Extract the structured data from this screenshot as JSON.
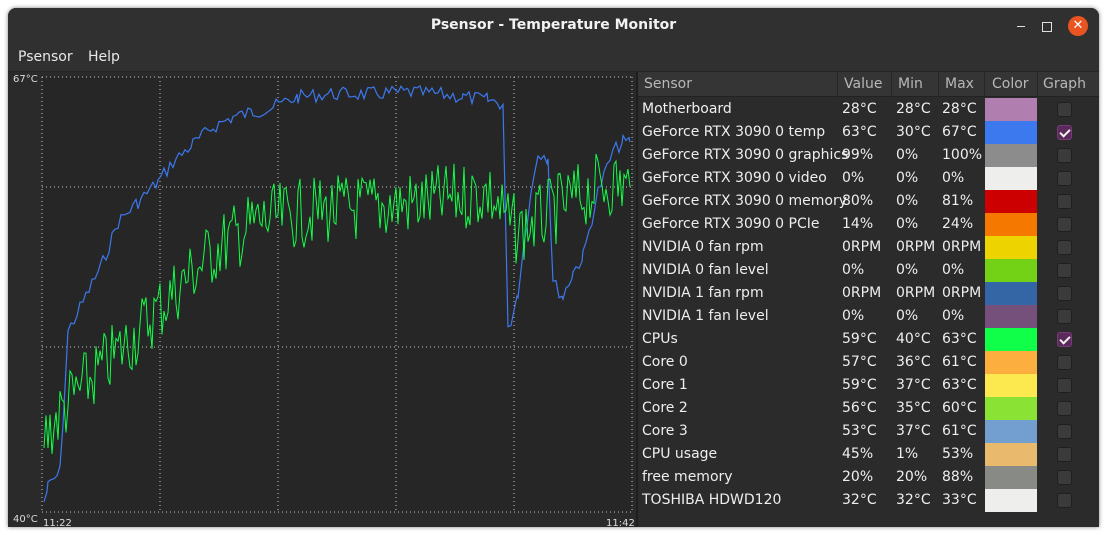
{
  "window": {
    "title": "Psensor - Temperature Monitor",
    "close_glyph": "✕"
  },
  "menu": {
    "items": [
      "Psensor",
      "Help"
    ]
  },
  "graph": {
    "y_max_label": "67°C",
    "y_min_label": "40°C",
    "x_start_label": "11:22",
    "x_end_label": "11:42",
    "background_color": "#2a2a2a",
    "grid_color": "#c8c8c8"
  },
  "table": {
    "columns": [
      "Sensor",
      "Value",
      "Min",
      "Max",
      "Color",
      "Graph"
    ],
    "rows": [
      {
        "sensor": "Motherboard",
        "value": "28°C",
        "min": "28°C",
        "max": "28°C",
        "color": "#b07fb0",
        "graph": false
      },
      {
        "sensor": "GeForce RTX 3090 0 temp",
        "value": "63°C",
        "min": "30°C",
        "max": "67°C",
        "color": "#3c78ee",
        "graph": true
      },
      {
        "sensor": "GeForce RTX 3090 0 graphics",
        "value": "99%",
        "min": "0%",
        "max": "100%",
        "color": "#8c8c8c",
        "graph": false
      },
      {
        "sensor": "GeForce RTX 3090 0 video",
        "value": "0%",
        "min": "0%",
        "max": "0%",
        "color": "#eeeeec",
        "graph": false
      },
      {
        "sensor": "GeForce RTX 3090 0 memory",
        "value": "80%",
        "min": "0%",
        "max": "81%",
        "color": "#cc0000",
        "graph": false
      },
      {
        "sensor": "GeForce RTX 3090 0 PCIe",
        "value": "14%",
        "min": "0%",
        "max": "24%",
        "color": "#f57900",
        "graph": false
      },
      {
        "sensor": "NVIDIA 0 fan rpm",
        "value": "0RPM",
        "min": "0RPM",
        "max": "0RPM",
        "color": "#edd400",
        "graph": false
      },
      {
        "sensor": "NVIDIA 0 fan level",
        "value": "0%",
        "min": "0%",
        "max": "0%",
        "color": "#73d216",
        "graph": false
      },
      {
        "sensor": "NVIDIA 1 fan rpm",
        "value": "0RPM",
        "min": "0RPM",
        "max": "0RPM",
        "color": "#3465a4",
        "graph": false
      },
      {
        "sensor": "NVIDIA 1 fan level",
        "value": "0%",
        "min": "0%",
        "max": "0%",
        "color": "#75507b",
        "graph": false
      },
      {
        "sensor": "CPUs",
        "value": "59°C",
        "min": "40°C",
        "max": "63°C",
        "color": "#10ff48",
        "graph": true
      },
      {
        "sensor": "Core 0",
        "value": "57°C",
        "min": "36°C",
        "max": "61°C",
        "color": "#fcaf3e",
        "graph": false
      },
      {
        "sensor": "Core 1",
        "value": "59°C",
        "min": "37°C",
        "max": "63°C",
        "color": "#fce94f",
        "graph": false
      },
      {
        "sensor": "Core 2",
        "value": "56°C",
        "min": "35°C",
        "max": "60°C",
        "color": "#8ae234",
        "graph": false
      },
      {
        "sensor": "Core 3",
        "value": "53°C",
        "min": "37°C",
        "max": "61°C",
        "color": "#729fcf",
        "graph": false
      },
      {
        "sensor": "CPU usage",
        "value": "45%",
        "min": "1%",
        "max": "53%",
        "color": "#e9b96e",
        "graph": false
      },
      {
        "sensor": "free memory",
        "value": "20%",
        "min": "20%",
        "max": "88%",
        "color": "#888a85",
        "graph": false
      },
      {
        "sensor": "TOSHIBA HDWD120",
        "value": "32°C",
        "min": "32°C",
        "max": "33°C",
        "color": "#eeeeec",
        "graph": false
      }
    ]
  }
}
